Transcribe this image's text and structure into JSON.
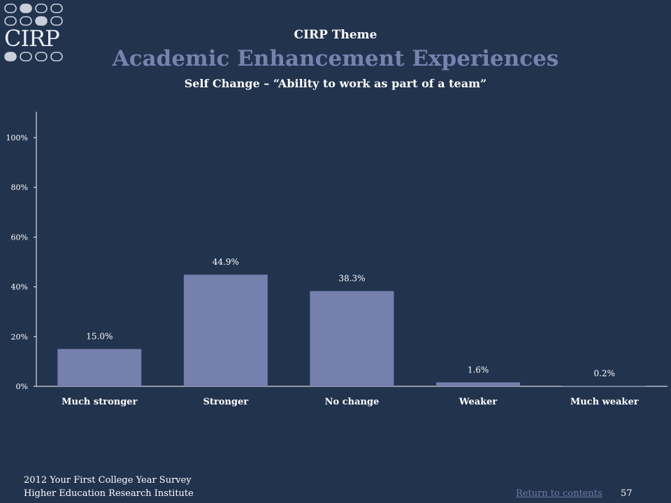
{
  "logo": {
    "text": "CIRP"
  },
  "header": {
    "theme": "CIRP Theme",
    "title": "Academic Enhancement Experiences",
    "subtitle": "Self Change – “Ability to work as part of a team”"
  },
  "chart_data": {
    "type": "bar",
    "categories": [
      "Much stronger",
      "Stronger",
      "No change",
      "Weaker",
      "Much weaker"
    ],
    "values": [
      15.0,
      44.9,
      38.3,
      1.6,
      0.2
    ],
    "data_labels": [
      "15.0%",
      "44.9%",
      "38.3%",
      "1.6%",
      "0.2%"
    ],
    "ylim": [
      0,
      110
    ],
    "yticks": [
      0,
      20,
      40,
      60,
      80,
      100
    ],
    "ytick_labels": [
      "0%",
      "20%",
      "40%",
      "60%",
      "80%",
      "100%"
    ],
    "bar_color": "#7580ad",
    "grid": false
  },
  "footer": {
    "line1": "2012 Your First College Year Survey",
    "line2": "Higher Education Research Institute",
    "return_link": "Return to contents",
    "page_number": "57"
  }
}
